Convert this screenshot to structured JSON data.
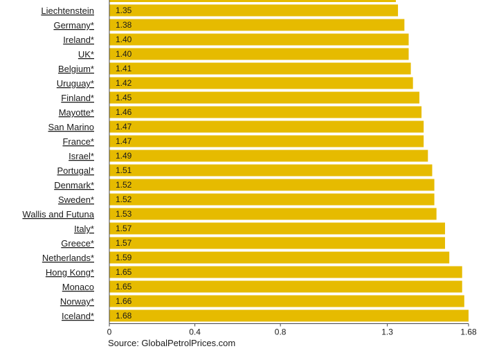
{
  "chart_data": {
    "type": "bar",
    "orientation": "horizontal",
    "bar_color": "#e6bb00",
    "top_partial_value": 1.34,
    "categories": [
      "Liechtenstein ",
      "Germany*",
      "Ireland*",
      "UK*",
      "Belgium*",
      "Uruguay*",
      "Finland*",
      "Mayotte*",
      "San Marino ",
      "France*",
      "Israel*",
      "Portugal*",
      "Denmark*",
      "Sweden*",
      "Wallis and Futuna",
      "Italy*",
      "Greece*",
      "Netherlands*",
      "Hong Kong*",
      "Monaco ",
      "Norway*",
      "Iceland*"
    ],
    "values": [
      1.35,
      1.38,
      1.4,
      1.4,
      1.41,
      1.42,
      1.45,
      1.46,
      1.47,
      1.47,
      1.49,
      1.51,
      1.52,
      1.52,
      1.53,
      1.57,
      1.57,
      1.59,
      1.65,
      1.65,
      1.66,
      1.68
    ],
    "value_labels": [
      "1.35",
      "1.38",
      "1.40",
      "1.40",
      "1.41",
      "1.42",
      "1.45",
      "1.46",
      "1.47",
      "1.47",
      "1.49",
      "1.51",
      "1.52",
      "1.52",
      "1.53",
      "1.57",
      "1.57",
      "1.59",
      "1.65",
      "1.65",
      "1.66",
      "1.68"
    ],
    "xlim": [
      0,
      1.68
    ],
    "x_ticks": [
      0,
      0.4,
      0.8,
      1.3,
      1.68
    ],
    "x_tick_labels": [
      "0",
      "0.4",
      "0.8",
      "1.3",
      "1.68"
    ],
    "grid": false
  },
  "source": "Source: GlobalPetrolPrices.com"
}
